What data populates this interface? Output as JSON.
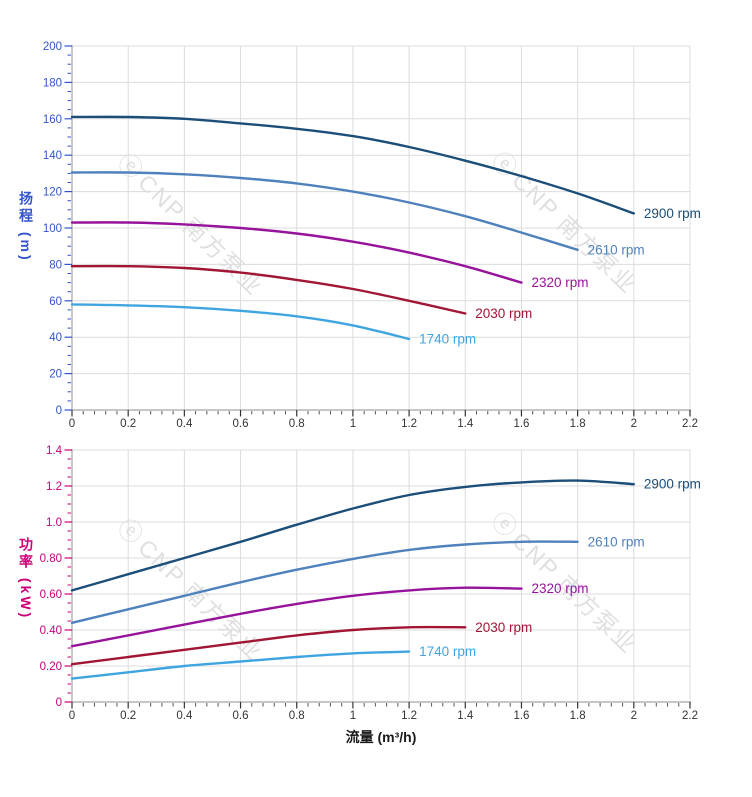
{
  "watermark": {
    "logo_glyph": "ⓔ",
    "text": "CNP 南方泵业"
  },
  "axes": {
    "head_y_title": "扬程 (m)",
    "power_y_title": "功率 (kW)",
    "x_title": "流量 (m³/h)"
  },
  "chart_data": [
    {
      "type": "line",
      "title": "",
      "ylabel": "扬程 (m)",
      "xlabel": "",
      "xlim": [
        0,
        2.2
      ],
      "ylim": [
        0,
        200
      ],
      "grid": true,
      "legend_position": "end-of-line",
      "axis_color": "#3355cb",
      "x_tick_color": "#333333",
      "grid_color": "#dcdcdc",
      "spine_color": "#a3a3a3",
      "x_tick_values": [
        0,
        0.2,
        0.4,
        0.6,
        0.8,
        1,
        1.2,
        1.4,
        1.6,
        1.8,
        2,
        2.2
      ],
      "x_tick_labels": [
        "0",
        "0.2",
        "0.4",
        "0.6",
        "0.8",
        "1",
        "1.2",
        "1.4",
        "1.6",
        "1.8",
        "2",
        "2.2"
      ],
      "y_tick_values": [
        0,
        20,
        40,
        60,
        80,
        100,
        120,
        140,
        160,
        180,
        200
      ],
      "y_tick_labels": [
        "0",
        "20",
        "40",
        "60",
        "80",
        "100",
        "120",
        "140",
        "160",
        "180",
        "200"
      ],
      "x_minor_step": 0.04,
      "y_minor_step": 5,
      "series": [
        {
          "name": "2900 rpm",
          "color": "#1b4e78",
          "x": [
            0,
            0.2,
            0.4,
            0.6,
            0.8,
            1,
            1.2,
            1.4,
            1.6,
            1.8,
            2
          ],
          "values": [
            161,
            161,
            160,
            157.5,
            154.5,
            150.5,
            144.5,
            137,
            128.5,
            119,
            108
          ]
        },
        {
          "name": "2610 rpm",
          "color": "#4f81bd",
          "x": [
            0,
            0.2,
            0.4,
            0.6,
            0.8,
            1,
            1.2,
            1.4,
            1.6,
            1.8
          ],
          "values": [
            130.5,
            130.5,
            129.5,
            127.5,
            124.5,
            120,
            114,
            106.5,
            97.5,
            88
          ]
        },
        {
          "name": "2320 rpm",
          "color": "#97139b",
          "x": [
            0,
            0.2,
            0.4,
            0.6,
            0.8,
            1,
            1.2,
            1.4,
            1.6
          ],
          "values": [
            103,
            103,
            102,
            100,
            97,
            92.5,
            86.5,
            79,
            70
          ]
        },
        {
          "name": "2030 rpm",
          "color": "#a11535",
          "x": [
            0,
            0.2,
            0.4,
            0.6,
            0.8,
            1,
            1.2,
            1.4
          ],
          "values": [
            79,
            79,
            78,
            75.5,
            71.5,
            66.5,
            60,
            53
          ]
        },
        {
          "name": "1740 rpm",
          "color": "#3fa5e0",
          "x": [
            0,
            0.2,
            0.4,
            0.6,
            0.8,
            1,
            1.2
          ],
          "values": [
            58,
            57.5,
            56.5,
            54.5,
            51.5,
            46.5,
            39
          ]
        }
      ]
    },
    {
      "type": "line",
      "title": "",
      "ylabel": "功率 (kW)",
      "xlabel": "流量 (m³/h)",
      "xlim": [
        0,
        2.2
      ],
      "ylim": [
        0,
        1.4
      ],
      "grid": true,
      "legend_position": "end-of-line",
      "axis_color": "#cc0077",
      "x_tick_color": "#333333",
      "grid_color": "#dcdcdc",
      "spine_color": "#a3a3a3",
      "x_tick_values": [
        0,
        0.2,
        0.4,
        0.6,
        0.8,
        1,
        1.2,
        1.4,
        1.6,
        1.8,
        2,
        2.2
      ],
      "x_tick_labels": [
        "0",
        "0.2",
        "0.4",
        "0.6",
        "0.8",
        "1",
        "1.2",
        "1.4",
        "1.6",
        "1.8",
        "2",
        "2.2"
      ],
      "y_tick_values": [
        0,
        0.2,
        0.4,
        0.6,
        0.8,
        1,
        1.2,
        1.4
      ],
      "y_tick_labels": [
        "0",
        "0.20",
        "0.40",
        "0.60",
        "0.80",
        "1.0",
        "1.2",
        "1.4"
      ],
      "x_minor_step": 0.04,
      "y_minor_step": 0.05,
      "series": [
        {
          "name": "2900 rpm",
          "color": "#1b4e78",
          "x": [
            0,
            0.2,
            0.4,
            0.6,
            0.8,
            1,
            1.2,
            1.4,
            1.6,
            1.8,
            2
          ],
          "values": [
            0.62,
            0.71,
            0.8,
            0.89,
            0.985,
            1.075,
            1.15,
            1.195,
            1.22,
            1.23,
            1.21
          ]
        },
        {
          "name": "2610 rpm",
          "color": "#4f81bd",
          "x": [
            0,
            0.2,
            0.4,
            0.6,
            0.8,
            1,
            1.2,
            1.4,
            1.6,
            1.8
          ],
          "values": [
            0.44,
            0.515,
            0.59,
            0.665,
            0.735,
            0.795,
            0.845,
            0.875,
            0.89,
            0.89
          ]
        },
        {
          "name": "2320 rpm",
          "color": "#97139b",
          "x": [
            0,
            0.2,
            0.4,
            0.6,
            0.8,
            1,
            1.2,
            1.4,
            1.6
          ],
          "values": [
            0.31,
            0.37,
            0.43,
            0.49,
            0.545,
            0.59,
            0.62,
            0.635,
            0.63
          ]
        },
        {
          "name": "2030 rpm",
          "color": "#a11535",
          "x": [
            0,
            0.2,
            0.4,
            0.6,
            0.8,
            1,
            1.2,
            1.4
          ],
          "values": [
            0.21,
            0.25,
            0.29,
            0.33,
            0.37,
            0.4,
            0.415,
            0.415
          ]
        },
        {
          "name": "1740 rpm",
          "color": "#3fa5e0",
          "x": [
            0,
            0.2,
            0.4,
            0.6,
            0.8,
            1,
            1.2
          ],
          "values": [
            0.13,
            0.165,
            0.2,
            0.225,
            0.25,
            0.27,
            0.28
          ]
        }
      ]
    }
  ]
}
